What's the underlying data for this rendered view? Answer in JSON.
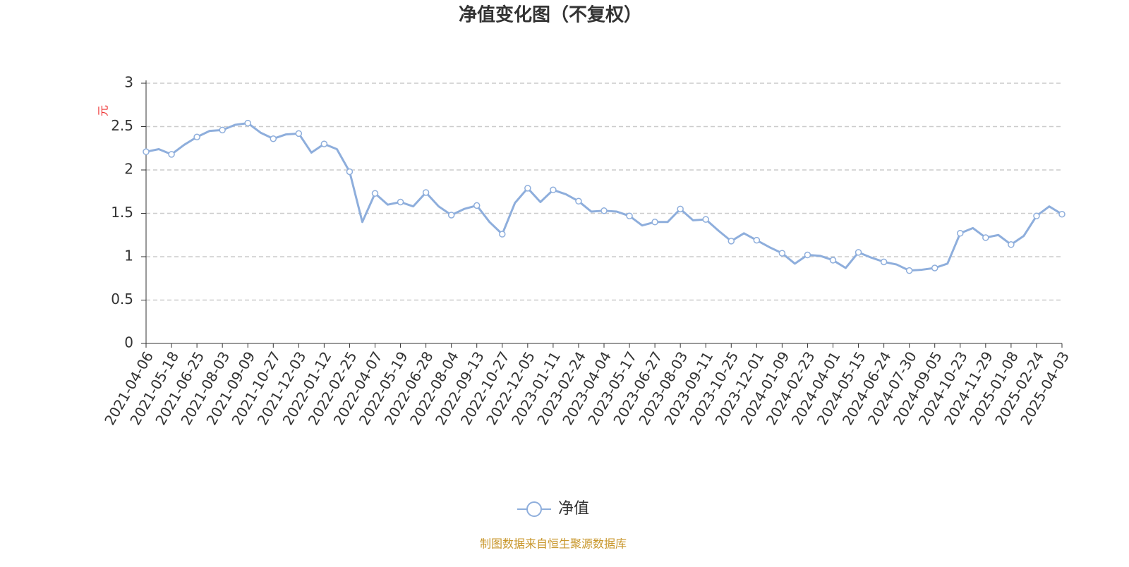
{
  "chart_data": {
    "type": "line",
    "title": "净值变化图（不复权）",
    "y_label": "元",
    "source": "制图数据来自恒生聚源数据库",
    "categories": [
      "2021-04-06",
      null,
      "2021-05-18",
      null,
      "2021-06-25",
      null,
      "2021-08-03",
      null,
      "2021-09-09",
      null,
      "2021-10-27",
      null,
      "2021-12-03",
      null,
      "2022-01-12",
      null,
      "2022-02-25",
      null,
      "2022-04-07",
      null,
      "2022-05-19",
      null,
      "2022-06-28",
      null,
      "2022-08-04",
      null,
      "2022-09-13",
      null,
      "2022-10-27",
      null,
      "2022-12-05",
      null,
      "2023-01-11",
      null,
      "2023-02-24",
      null,
      "2023-04-04",
      null,
      "2023-05-17",
      null,
      "2023-06-27",
      null,
      "2023-08-03",
      null,
      "2023-09-11",
      null,
      "2023-10-25",
      null,
      "2023-12-01",
      null,
      "2024-01-09",
      null,
      "2024-02-23",
      null,
      "2024-04-01",
      null,
      "2024-05-15",
      null,
      "2024-06-24",
      null,
      "2024-07-30",
      null,
      "2024-09-05",
      null,
      "2024-10-23",
      null,
      "2024-11-29",
      null,
      "2025-01-08",
      null,
      "2025-02-24",
      null,
      "2025-04-03"
    ],
    "series": [
      {
        "name": "净值",
        "color": "#8eaedc",
        "values": [
          2.21,
          2.24,
          2.18,
          2.29,
          2.38,
          2.45,
          2.46,
          2.52,
          2.54,
          2.43,
          2.36,
          2.41,
          2.42,
          2.2,
          2.3,
          2.24,
          1.98,
          1.4,
          1.73,
          1.6,
          1.63,
          1.58,
          1.74,
          1.58,
          1.48,
          1.55,
          1.59,
          1.4,
          1.26,
          1.62,
          1.79,
          1.63,
          1.77,
          1.72,
          1.64,
          1.52,
          1.53,
          1.52,
          1.47,
          1.36,
          1.4,
          1.4,
          1.55,
          1.42,
          1.43,
          1.3,
          1.18,
          1.27,
          1.19,
          1.11,
          1.04,
          0.92,
          1.02,
          1.01,
          0.96,
          0.87,
          1.05,
          0.99,
          0.94,
          0.91,
          0.84,
          0.85,
          0.87,
          0.92,
          1.27,
          1.33,
          1.22,
          1.25,
          1.14,
          1.24,
          1.47,
          1.58,
          1.49
        ]
      }
    ],
    "ylim": [
      0,
      3
    ],
    "yticks": [
      0,
      0.5,
      1,
      1.5,
      2,
      2.5,
      3
    ],
    "grid": true,
    "legend": "bottom"
  }
}
